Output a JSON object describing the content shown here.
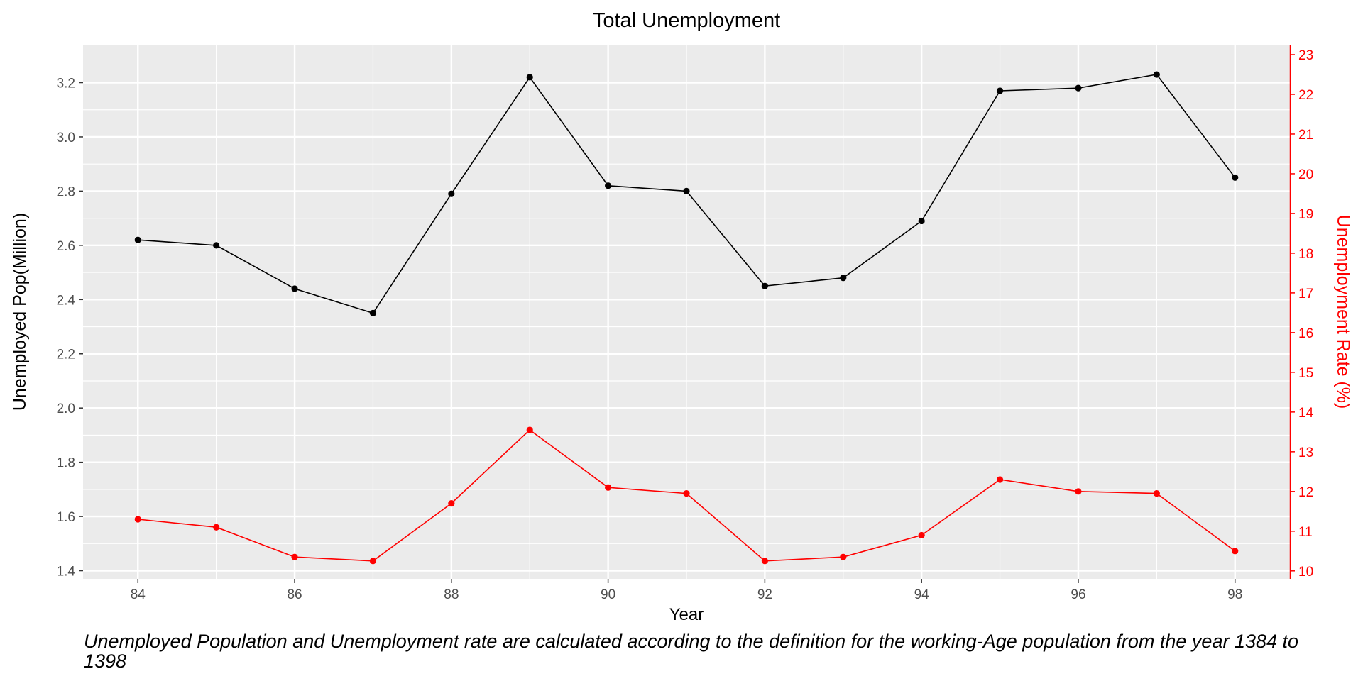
{
  "chart_data": {
    "type": "line",
    "title": "Total Unemployment",
    "xlabel": "Year",
    "ylabel": "Unemployed Pop(Million)",
    "y2label": "Unemployment Rate (%)",
    "caption": "Unemployed Population and Unemployment rate are calculated according to the definition for the working-Age population from the year 1384 to 1398",
    "x": [
      84,
      85,
      86,
      87,
      88,
      89,
      90,
      91,
      92,
      93,
      94,
      95,
      96,
      97,
      98
    ],
    "x_ticks": [
      84,
      86,
      88,
      90,
      92,
      94,
      96,
      98
    ],
    "xlim": [
      83.3,
      98.7
    ],
    "ylim": [
      1.37,
      3.34
    ],
    "y_ticks": [
      1.4,
      1.6,
      1.8,
      2.0,
      2.2,
      2.4,
      2.6,
      2.8,
      3.0,
      3.2
    ],
    "y2lim": [
      9.8,
      23.25
    ],
    "y2_ticks": [
      10,
      11,
      12,
      13,
      14,
      15,
      16,
      17,
      18,
      19,
      20,
      21,
      22,
      23
    ],
    "grid": true,
    "legend": "none",
    "series": [
      {
        "axis": "left",
        "color": "#000000",
        "values": [
          2.62,
          2.6,
          2.44,
          2.35,
          2.79,
          3.22,
          2.82,
          2.8,
          2.45,
          2.48,
          2.69,
          3.17,
          3.18,
          3.23,
          2.85
        ]
      },
      {
        "axis": "right",
        "color": "#ff0000",
        "values": [
          11.3,
          11.1,
          10.35,
          10.25,
          11.7,
          13.55,
          12.1,
          11.95,
          10.25,
          10.35,
          10.9,
          12.3,
          12.0,
          11.95,
          10.5
        ]
      }
    ],
    "colors": {
      "panel": "#ebebeb",
      "grid": "#ffffff",
      "axis_text": "#4d4d4d",
      "secondary": "#ff0000"
    }
  }
}
